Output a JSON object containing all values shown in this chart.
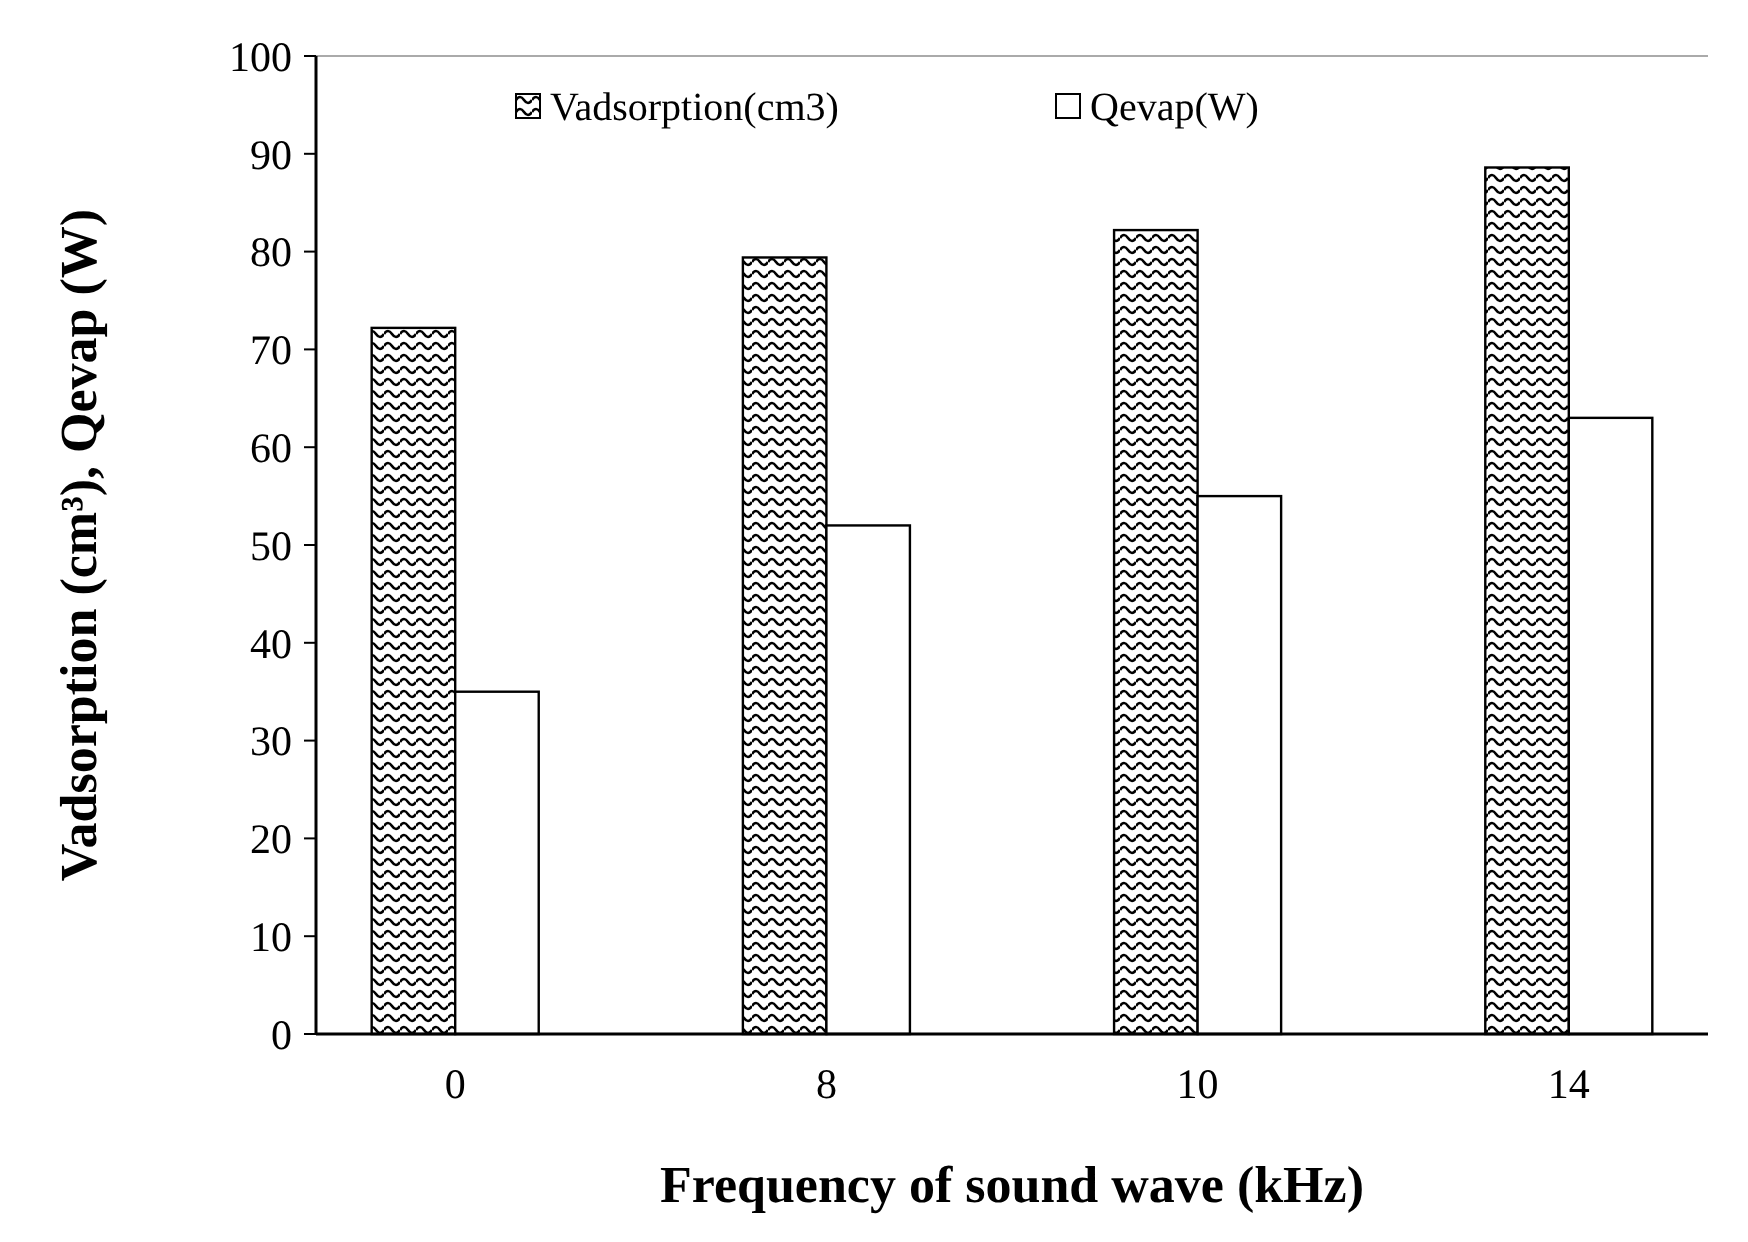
{
  "chart_data": {
    "type": "bar",
    "xlabel": "Frequency of sound wave (kHz)",
    "ylabel": "Vadsorption (cm³), Qevap (W)",
    "categories": [
      "0",
      "8",
      "10",
      "14"
    ],
    "series": [
      {
        "name": "Vadsorption(cm3)",
        "color": "#000000",
        "values": [
          72.2,
          79.4,
          82.2,
          88.6
        ]
      },
      {
        "name": "Qevap(W)",
        "color": "#ffffff",
        "values": [
          35,
          52,
          55,
          63
        ]
      }
    ],
    "ylim": [
      0,
      100
    ],
    "yticks": [
      0,
      10,
      20,
      30,
      40,
      50,
      60,
      70,
      80,
      90,
      100
    ],
    "legend": "top",
    "grid": false
  }
}
